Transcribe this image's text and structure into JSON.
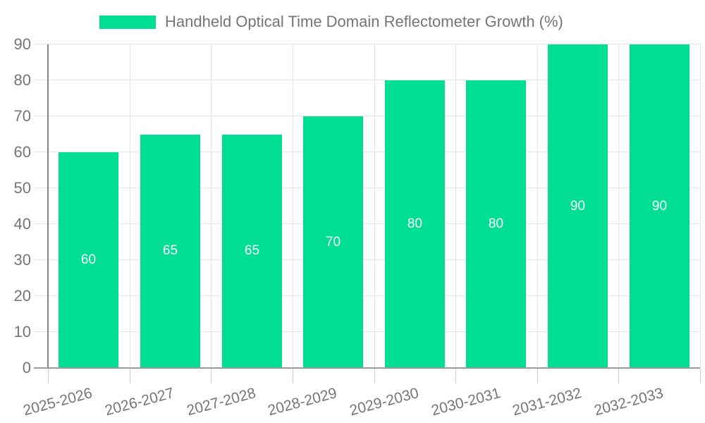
{
  "chart_data": {
    "type": "bar",
    "title": "Handheld Optical Time Domain Reflectometer Growth (%)",
    "categories": [
      "2025-2026",
      "2026-2027",
      "2027-2028",
      "2028-2029",
      "2029-2030",
      "2030-2031",
      "2031-2032",
      "2032-2033"
    ],
    "values": [
      60,
      65,
      65,
      70,
      80,
      80,
      90,
      90
    ],
    "xlabel": "",
    "ylabel": "",
    "ylim": [
      0,
      90
    ],
    "ytick_step": 10,
    "grid": true,
    "legend_position": "top",
    "value_labels_shown": true
  },
  "colors": {
    "bar": "#00DE94",
    "grid": "#E6E6E6",
    "tick": "#CCCCCC",
    "axis_y": "#848484",
    "axis_x": "#9A9A9A",
    "text": "#757575",
    "value_label": "#FFFFFF",
    "background": "#FFFFFF"
  }
}
